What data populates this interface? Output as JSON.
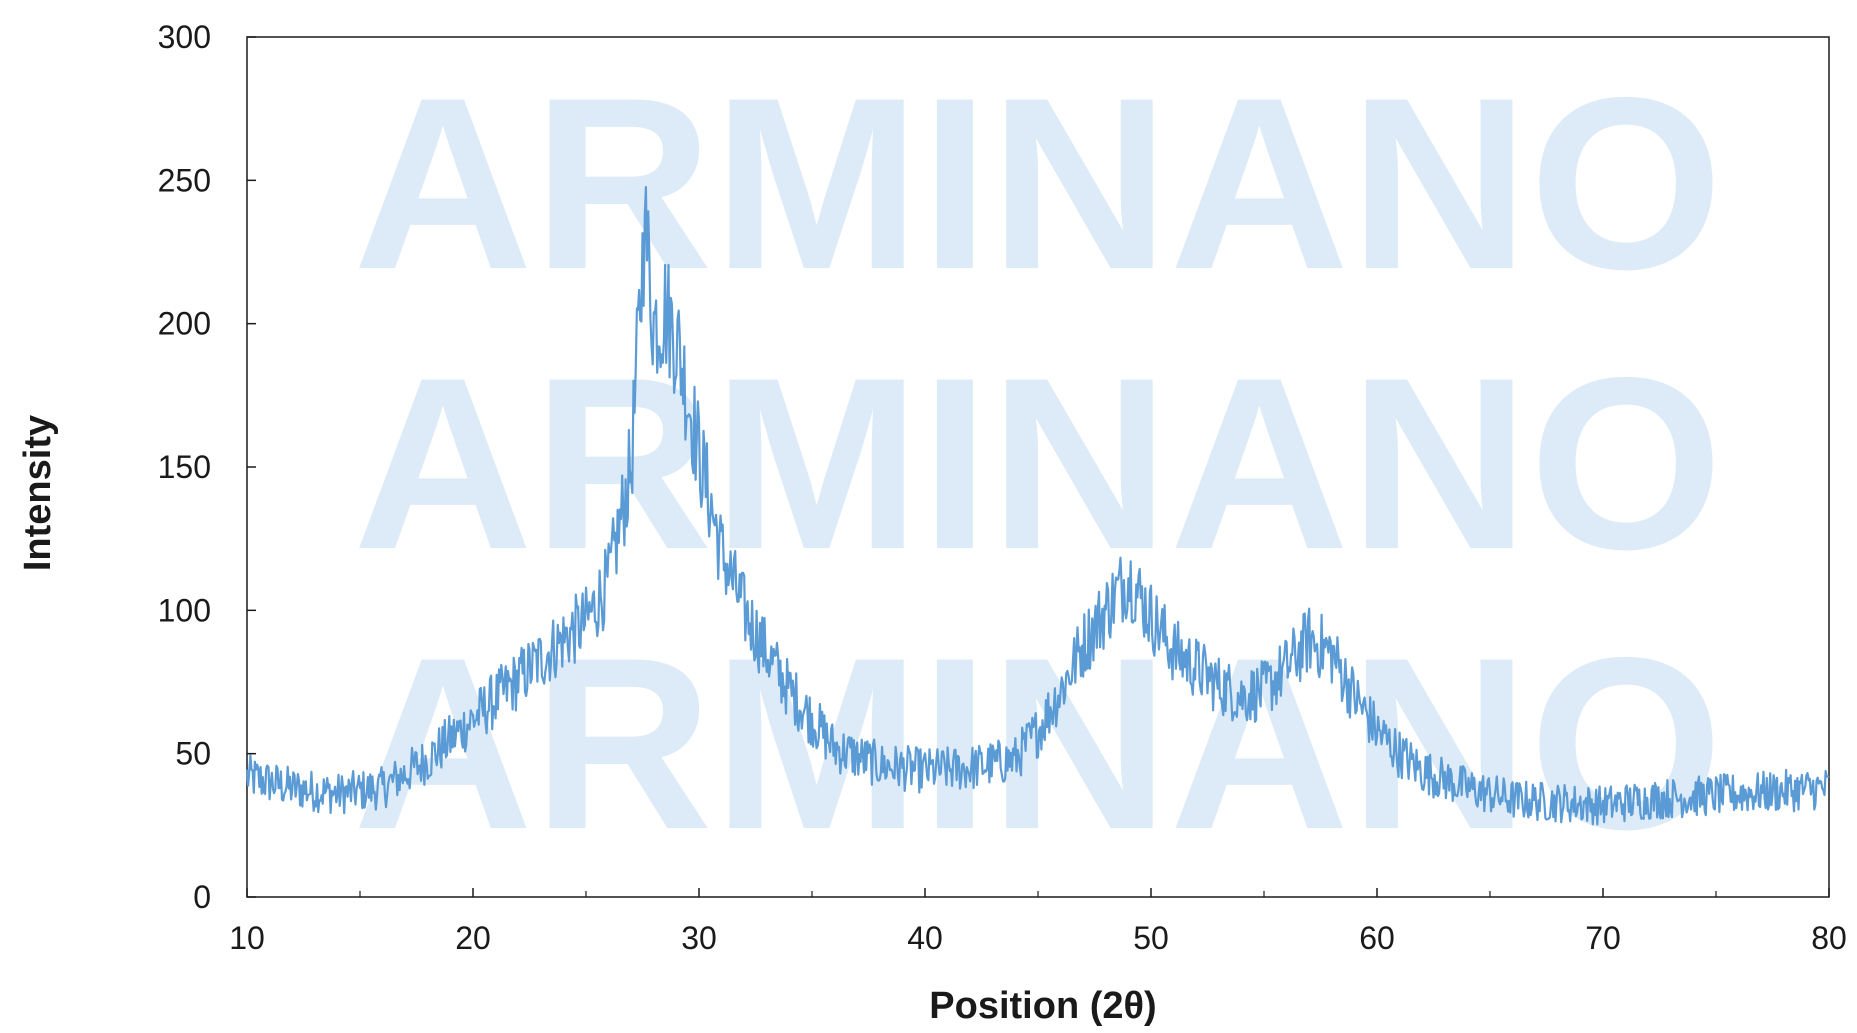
{
  "watermark": "ARMINANO",
  "colors": {
    "series": "#5b9bd5",
    "watermark": "#dcebf7",
    "axis": "#1a1a1a"
  },
  "chart_data": {
    "type": "line",
    "title": "",
    "xlabel": "Position (2θ)",
    "ylabel": "Intensity",
    "xlim": [
      10,
      80
    ],
    "ylim": [
      0,
      300
    ],
    "xticks": [
      10,
      20,
      30,
      40,
      50,
      60,
      70,
      80
    ],
    "yticks": [
      0,
      50,
      100,
      150,
      200,
      250,
      300
    ],
    "xtick_labels": [
      "10",
      "20",
      "30",
      "40",
      "50",
      "60",
      "70",
      "80"
    ],
    "ytick_labels": [
      "0",
      "50",
      "100",
      "150",
      "200",
      "250",
      "300"
    ],
    "grid": false,
    "legend": "none",
    "series": [
      {
        "x": [
          10,
          12,
          14,
          16,
          18,
          20,
          22,
          24,
          25,
          26,
          27,
          27.6,
          28,
          28.5,
          29,
          30,
          31,
          32,
          33,
          34,
          35,
          36,
          38,
          40,
          42,
          44,
          45,
          46,
          47,
          48,
          49,
          50,
          51,
          52,
          53,
          54,
          55,
          56,
          57,
          58,
          59,
          60,
          61,
          62,
          64,
          66,
          68,
          70,
          72,
          74,
          76,
          78,
          80
        ],
        "values": [
          42,
          38,
          36,
          38,
          48,
          62,
          76,
          90,
          96,
          110,
          150,
          235,
          200,
          205,
          195,
          155,
          120,
          100,
          85,
          72,
          62,
          52,
          46,
          44,
          45,
          48,
          58,
          72,
          88,
          100,
          112,
          98,
          86,
          80,
          74,
          70,
          72,
          80,
          90,
          85,
          70,
          58,
          50,
          44,
          38,
          34,
          33,
          32,
          34,
          35,
          36,
          37,
          38
        ]
      }
    ]
  }
}
